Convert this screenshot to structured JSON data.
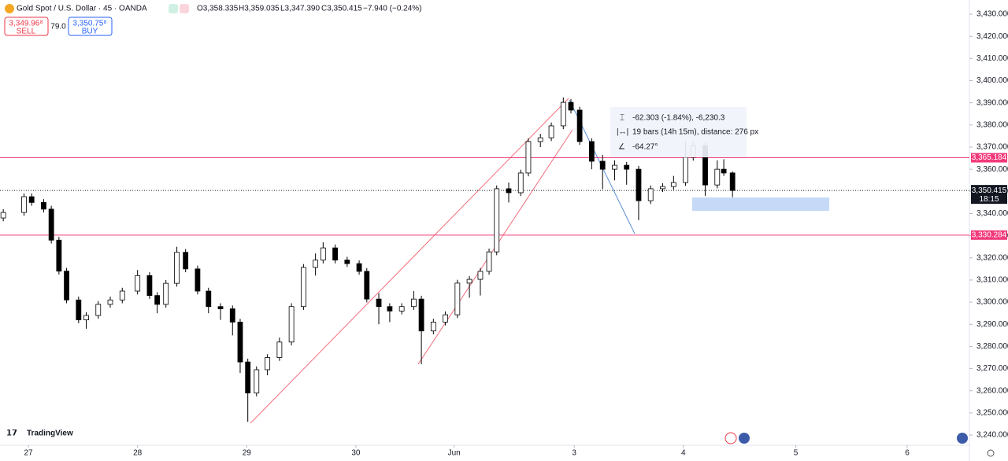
{
  "header": {
    "title": "Gold Spot / U.S. Dollar · 45 · OANDA",
    "ohlc": [
      "O3,358.335",
      "H3,359.035",
      "L3,347.390",
      "C3,350.415"
    ],
    "change": "−7.940 (−0.24%)",
    "sell_price": "3,349.96⁸",
    "sell": "SELL",
    "spread": "79.0",
    "buy_price": "3,350.75⁸",
    "buy": "BUY",
    "logo": "TradingView"
  },
  "measure": {
    "price": "-62.303 (-1.84%), -6,230.3",
    "bars": "19 bars (14h 15m), distance: 276 px",
    "angle": "-64.27°"
  },
  "chart_data": {
    "type": "candlestick",
    "up_color": "#ffffff",
    "down_color": "#000000",
    "wick_color": "#000000",
    "x": [
      -0.23,
      -0.04,
      0.03,
      0.14,
      0.21,
      0.28,
      0.35,
      0.46,
      0.53,
      0.64,
      0.75,
      0.86,
      1.0,
      1.11,
      1.18,
      1.26,
      1.36,
      1.44,
      1.55,
      1.65,
      1.76,
      1.87,
      1.94,
      2.01,
      2.09,
      2.19,
      2.3,
      2.41,
      2.52,
      2.63,
      2.7,
      2.81,
      2.92,
      3.03,
      3.1,
      3.21,
      3.31,
      3.42,
      3.53,
      3.6,
      3.71,
      3.82,
      3.93,
      4.04,
      4.14,
      4.22,
      4.29,
      4.4,
      4.51,
      4.58,
      4.69,
      4.79,
      4.9,
      4.97,
      5.05,
      5.16,
      5.26,
      5.37,
      5.48,
      5.59,
      5.7,
      5.81,
      5.91,
      6.02,
      6.09,
      6.2,
      6.31,
      6.37,
      6.45
    ],
    "open": [
      3338,
      3340.5,
      3347.6,
      3345,
      3342,
      3328,
      3314,
      3301,
      3292,
      3294,
      3299,
      3301,
      3305,
      3312,
      3303,
      3299,
      3308.5,
      3322.5,
      3315,
      3305,
      3298,
      3297,
      3291,
      3273,
      3259,
      3269.5,
      3275,
      3282,
      3298,
      3315.7,
      3319,
      3324.5,
      3319,
      3317.4,
      3313.9,
      3301.4,
      3298,
      3296,
      3298,
      3301.4,
      3287,
      3291,
      3294.3,
      3308.6,
      3310.3,
      3313.9,
      3322.7,
      3351.2,
      3349.4,
      3358.3,
      3372.5,
      3374.2,
      3379.6,
      3390.2,
      3386.7,
      3372.5,
      3363.6,
      3360,
      3361.8,
      3360,
      3345.8,
      3351.2,
      3352.2,
      3354,
      3365.4,
      3370.7,
      3352.9,
      3360,
      3358.335
    ],
    "high": [
      3342,
      3349.1,
      3349.1,
      3346.5,
      3343.5,
      3329.5,
      3315.5,
      3302.5,
      3295.5,
      3300.5,
      3302.5,
      3306.5,
      3314.5,
      3313.5,
      3304.5,
      3310,
      3325,
      3324,
      3316.5,
      3306.5,
      3299.5,
      3298.5,
      3292.5,
      3274.5,
      3271,
      3276.5,
      3284,
      3299.5,
      3317.2,
      3322,
      3327,
      3326,
      3320.5,
      3318.9,
      3315.4,
      3304,
      3299.5,
      3299.5,
      3305,
      3302.9,
      3292.5,
      3295.8,
      3310.1,
      3311.8,
      3315.4,
      3324.2,
      3352.7,
      3354,
      3359.8,
      3374,
      3376,
      3381.1,
      3392.4,
      3391.7,
      3388.2,
      3374,
      3366.5,
      3364,
      3363.3,
      3361.5,
      3352.7,
      3353.7,
      3357,
      3372.6,
      3372.2,
      3372.2,
      3364,
      3364.5,
      3359.035
    ],
    "low": [
      3336.5,
      3339,
      3343.5,
      3340.5,
      3326.5,
      3312.5,
      3299.5,
      3290.5,
      3288,
      3292.5,
      3297.5,
      3299.5,
      3303.5,
      3301.5,
      3295,
      3297.5,
      3307,
      3313.5,
      3303.5,
      3295,
      3292,
      3285,
      3268,
      3246,
      3257.5,
      3267,
      3273.5,
      3280.5,
      3296.5,
      3312,
      3317.5,
      3317.5,
      3315.9,
      3312.4,
      3299.9,
      3290,
      3291,
      3294.5,
      3296.5,
      3272,
      3285.5,
      3289.5,
      3292.8,
      3302,
      3303,
      3312.4,
      3321.2,
      3345,
      3347.9,
      3356.8,
      3370,
      3372.7,
      3378.1,
      3385.2,
      3371,
      3360,
      3351,
      3355,
      3353,
      3337,
      3344.3,
      3349.7,
      3350.7,
      3352.5,
      3363.9,
      3348,
      3351.4,
      3357,
      3347.39
    ],
    "close": [
      3340.5,
      3347.6,
      3345,
      3342,
      3328,
      3314,
      3301,
      3292,
      3294,
      3299,
      3301,
      3305,
      3312,
      3303,
      3299,
      3308.5,
      3322.5,
      3315,
      3305,
      3298,
      3297,
      3291,
      3273,
      3259,
      3269.5,
      3275,
      3282,
      3298,
      3315.7,
      3319,
      3324.5,
      3319,
      3317.4,
      3313.9,
      3301.4,
      3298,
      3296,
      3298,
      3301.4,
      3287,
      3291,
      3294.3,
      3308.6,
      3310.3,
      3313.9,
      3322.7,
      3351.2,
      3349.4,
      3358.3,
      3372.5,
      3374.2,
      3379.6,
      3390.2,
      3386.7,
      3372.5,
      3363.6,
      3360,
      3361.8,
      3360,
      3345.8,
      3351.2,
      3352.2,
      3354,
      3365.4,
      3370.7,
      3352.9,
      3360,
      3358.3,
      3350.415
    ],
    "xlim": [
      -0.26,
      8.62
    ],
    "xticks": [
      {
        "value": 0,
        "label": "27"
      },
      {
        "value": 1,
        "label": "28"
      },
      {
        "value": 2,
        "label": "29"
      },
      {
        "value": 3,
        "label": "30"
      },
      {
        "value": 3.9,
        "label": "Jun"
      },
      {
        "value": 5,
        "label": "3"
      },
      {
        "value": 6,
        "label": "4"
      },
      {
        "value": 7.03,
        "label": "5"
      },
      {
        "value": 8.05,
        "label": "6"
      }
    ],
    "ylim": [
      3235.4,
      3436.4
    ],
    "yticks": [
      {
        "value": 3240,
        "label": "3,240.000"
      },
      {
        "value": 3250,
        "label": "3,250.000"
      },
      {
        "value": 3260,
        "label": "3,260.000"
      },
      {
        "value": 3270,
        "label": "3,270.000"
      },
      {
        "value": 3280,
        "label": "3,280.000"
      },
      {
        "value": 3290,
        "label": "3,290.000"
      },
      {
        "value": 3300,
        "label": "3,300.000"
      },
      {
        "value": 3310,
        "label": "3,310.000"
      },
      {
        "value": 3320,
        "label": "3,320.000"
      },
      {
        "value": 3330,
        "label": "3,330.000"
      },
      {
        "value": 3340,
        "label": "3,340.000"
      },
      {
        "value": 3350,
        "label": "3,350.000"
      },
      {
        "value": 3360,
        "label": "3,360.000"
      },
      {
        "value": 3370,
        "label": "3,370.000"
      },
      {
        "value": 3380,
        "label": "3,380.000"
      },
      {
        "value": 3390,
        "label": "3,390.000"
      },
      {
        "value": 3400,
        "label": "3,400.000"
      },
      {
        "value": 3410,
        "label": "3,410.000"
      },
      {
        "value": 3420,
        "label": "3,420.000"
      },
      {
        "value": 3430,
        "label": "3,430.000"
      }
    ],
    "levels": [
      {
        "value": 3365.184,
        "label": "3,365.184",
        "color": "#f23a7a"
      },
      {
        "value": 3330.284,
        "label": "3,330.284",
        "color": "#f23a7a"
      }
    ],
    "last_price": {
      "value": 3350.415,
      "label": "3,350.415",
      "countdown": "18:15",
      "color": "#131722"
    }
  }
}
